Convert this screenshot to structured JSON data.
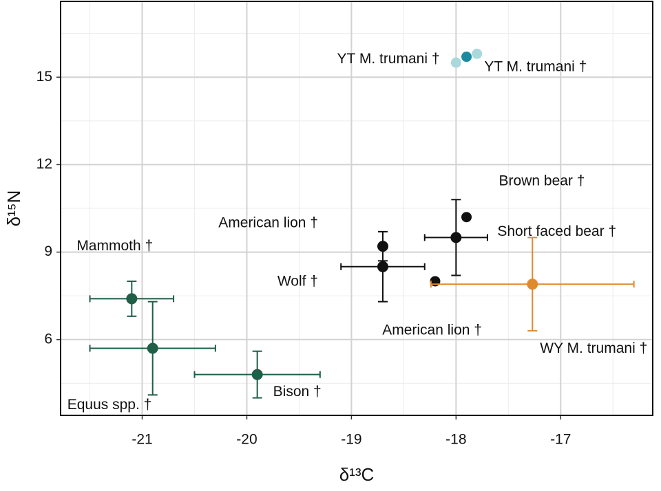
{
  "chart_data": {
    "type": "scatter",
    "xlabel": "δ¹³C",
    "ylabel": "δ¹⁵N",
    "xlim": [
      -21.78,
      -16.12
    ],
    "ylim": [
      3.4,
      17.6
    ],
    "xticks": [
      -21,
      -20,
      -19,
      -18,
      -17
    ],
    "yticks": [
      6,
      9,
      12,
      15
    ],
    "grid": true,
    "minor_grid": true,
    "series": [
      {
        "name": "Mammoth †",
        "color": "#1f5e47",
        "x": [
          -21.1
        ],
        "y": [
          7.4
        ],
        "xerr": [
          0.4
        ],
        "yerr": [
          0.6
        ]
      },
      {
        "name": "Equus spp. †",
        "color": "#1f5e47",
        "x": [
          -20.9
        ],
        "y": [
          5.7
        ],
        "xerr": [
          0.6
        ],
        "yerr": [
          1.6
        ]
      },
      {
        "name": "Bison †",
        "color": "#1f5e47",
        "x": [
          -19.9
        ],
        "y": [
          4.8
        ],
        "xerr": [
          0.6
        ],
        "yerr": [
          0.8
        ]
      },
      {
        "name": "American lion †",
        "color": "#111111",
        "x": [
          -18.7
        ],
        "y": [
          9.2
        ],
        "yerr": [
          0.5
        ]
      },
      {
        "name": "Wolf †",
        "color": "#111111",
        "x": [
          -18.7
        ],
        "y": [
          8.5
        ],
        "xerr": [
          0.4
        ],
        "yerr": [
          1.2
        ]
      },
      {
        "name": "Short faced bear †",
        "color": "#111111",
        "x": [
          -18.0
        ],
        "y": [
          9.5
        ],
        "xerr": [
          0.3
        ],
        "yerr": [
          1.3
        ]
      },
      {
        "name": "Brown bear †",
        "color": "#111111",
        "x": [
          -17.9
        ],
        "y": [
          10.2
        ]
      },
      {
        "name": "American lion †",
        "color": "#111111",
        "x": [
          -18.2
        ],
        "y": [
          8.0
        ]
      },
      {
        "name": "YT M. trumani †",
        "color": "#1b8aa0",
        "x": [
          -17.9
        ],
        "y": [
          15.7
        ]
      },
      {
        "name": "YT M. trumani †",
        "color": "#a9d9dd",
        "x": [
          -18.0,
          -17.8
        ],
        "y": [
          15.5,
          15.8
        ]
      },
      {
        "name": "WY M. trumani †",
        "color": "#e08a2e",
        "x": [
          -17.27
        ],
        "y": [
          7.9
        ],
        "xerr": [
          0.97
        ],
        "yerr": [
          1.6
        ]
      }
    ]
  }
}
